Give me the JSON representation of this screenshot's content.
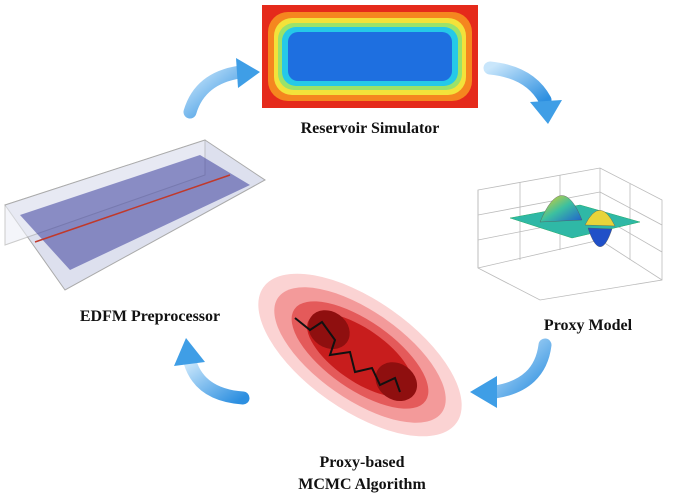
{
  "nodes": [
    {
      "label": "Reservoir Simulator"
    },
    {
      "label": "Proxy Model"
    },
    {
      "lines": [
        "Proxy-based",
        "MCMC Algorithm"
      ]
    },
    {
      "label": "EDFM Preprocessor"
    }
  ]
}
